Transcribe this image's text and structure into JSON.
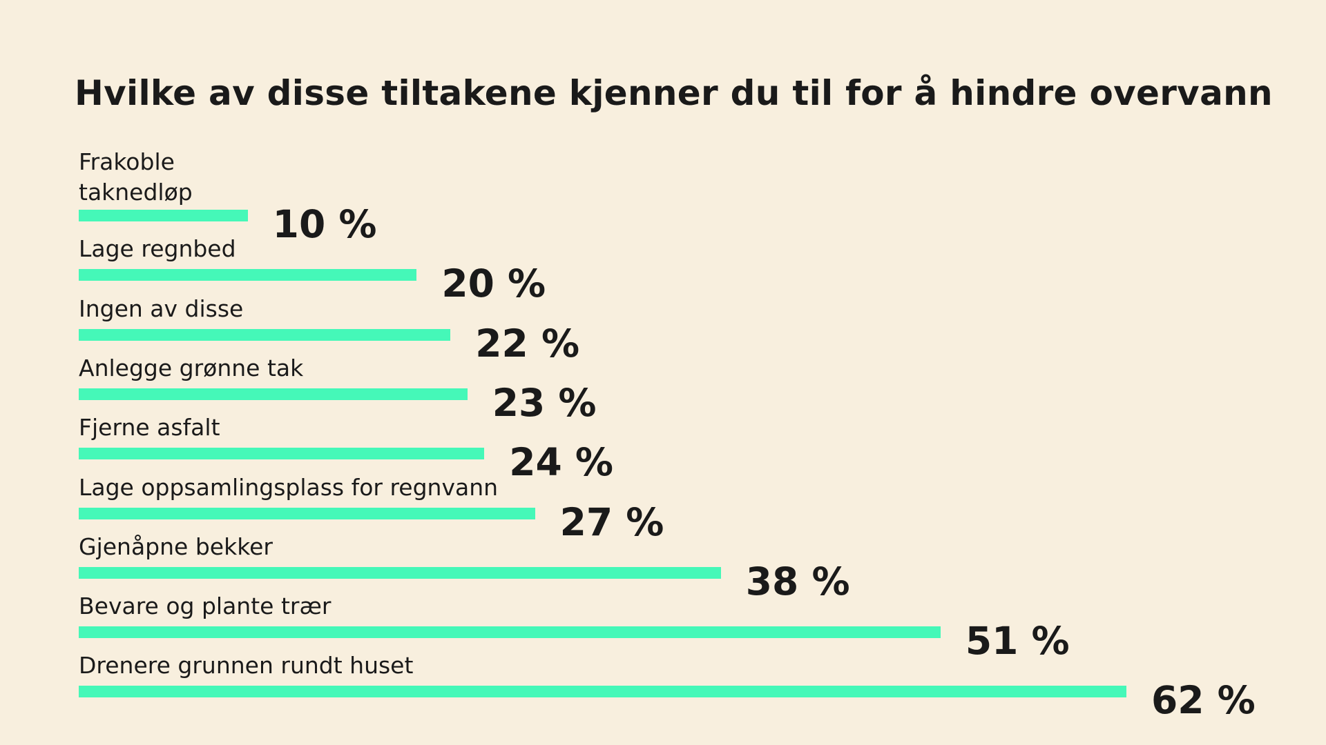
{
  "chart_data": {
    "type": "bar",
    "orientation": "horizontal",
    "title": "Hvilke av disse tiltakene kjenner du til for å hindre overvann",
    "categories": [
      "Frakoble taknedløp",
      "Lage regnbed",
      "Ingen av disse",
      "Anlegge grønne tak",
      "Fjerne asfalt",
      "Lage oppsamlingsplass for regnvann",
      "Gjenåpne bekker",
      "Bevare og plante trær",
      "Drenere grunnen rundt huset"
    ],
    "values": [
      10,
      20,
      22,
      23,
      24,
      27,
      38,
      51,
      62
    ],
    "value_labels": [
      "10 %",
      "20 %",
      "22 %",
      "23 %",
      "24 %",
      "27 %",
      "38 %",
      "51 %",
      "62 %"
    ],
    "unit": "%",
    "xlim": [
      0,
      62
    ],
    "grid": false,
    "colors": {
      "bar": "#45f8b8",
      "background": "#f8efde",
      "text": "#1a1a1a"
    }
  }
}
